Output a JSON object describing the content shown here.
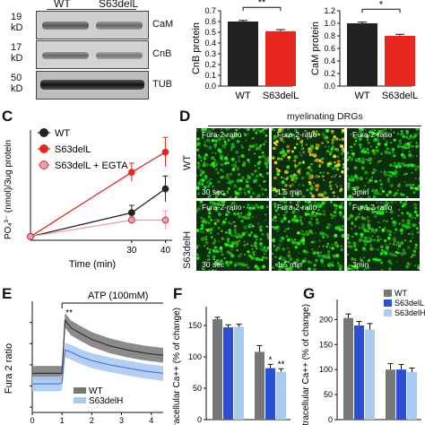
{
  "panelA": {
    "lanes": [
      "WT",
      "S63delL"
    ],
    "blots": [
      {
        "mw": "19\nkD",
        "name": "CaM"
      },
      {
        "mw": "17\nkD",
        "name": "CnB"
      },
      {
        "mw": "50\nkD",
        "name": "TUB"
      }
    ]
  },
  "panelC": {
    "letter": "C",
    "legend": [
      "WT",
      "S63delL",
      "S63delL + EGTA"
    ]
  },
  "panelD": {
    "letter": "D",
    "header": "myelinating DRGs",
    "rows": [
      "WT",
      "S63delH"
    ],
    "tile_label": "Fura-2-ratio",
    "times": [
      "30 sec",
      "1.5 min",
      "3min"
    ]
  },
  "panelE": {
    "letter": "E",
    "ann": "ATP (100mM)",
    "sig": "**"
  },
  "panelF": {
    "letter": "F"
  },
  "panelG": {
    "letter": "G"
  },
  "colors": {
    "wt": "#222222",
    "delL": "#e8261f",
    "egta": "#f2a0a8",
    "delLblue": "#2a4fd6",
    "delHlight": "#a9cbf2",
    "wtgray": "#777777"
  },
  "chart_data": [
    {
      "type": "bar",
      "id": "B1",
      "categories": [
        "WT",
        "S63delL"
      ],
      "values": [
        0.6,
        0.51
      ],
      "errors": [
        0.01,
        0.015
      ],
      "ylabel": "CnB protein",
      "ylim": [
        0,
        0.7
      ],
      "yticks": [
        "0.0",
        "0.1",
        "0.2",
        "0.3",
        "0.4",
        "0.5",
        "0.6",
        "0.7"
      ],
      "sig": "**"
    },
    {
      "type": "bar",
      "id": "B2",
      "categories": [
        "WT",
        "S63delL"
      ],
      "values": [
        1.0,
        0.8
      ],
      "errors": [
        0.02,
        0.025
      ],
      "ylabel": "CaM protein",
      "ylim": [
        0,
        1.2
      ],
      "yticks": [
        "0.0",
        "0.2",
        "0.4",
        "0.6",
        "0.8",
        "1.0",
        "1.2"
      ],
      "sig": "*"
    },
    {
      "type": "line",
      "id": "C",
      "x": [
        0,
        30,
        40
      ],
      "xticks": [
        "30",
        "40"
      ],
      "xlabel": "Time (min)",
      "ylabel": "PO₄³⁻ (nmol)/3ug protein",
      "ylim": [
        0,
        0.6
      ],
      "series": [
        {
          "name": "WT",
          "values": [
            0.02,
            0.15,
            0.28
          ],
          "errors": [
            0,
            0.04,
            0.07
          ]
        },
        {
          "name": "S63delL",
          "values": [
            0.02,
            0.37,
            0.48
          ],
          "errors": [
            0,
            0.05,
            0.08
          ]
        },
        {
          "name": "S63delL + EGTA",
          "values": [
            0.02,
            0.11,
            0.11
          ],
          "errors": [
            0,
            0.02,
            0.05
          ]
        }
      ]
    },
    {
      "type": "line",
      "id": "E",
      "xticks": [
        "0",
        "1",
        "2",
        "3",
        "4"
      ],
      "yticks": [
        "0.2",
        "0.4",
        "0.6",
        "0.8",
        "1.0"
      ],
      "ylabel": "Fura 2 ratio",
      "ylim": [
        0.15,
        1.15
      ],
      "xlim": [
        0,
        4.4
      ],
      "series": [
        {
          "name": "WT",
          "x": [
            0,
            0.9,
            1.0,
            1.1,
            1.3,
            1.6,
            2.0,
            2.6,
            3.2,
            3.8,
            4.4
          ],
          "values": [
            0.52,
            0.52,
            0.52,
            1.02,
            0.95,
            0.9,
            0.84,
            0.78,
            0.74,
            0.71,
            0.69
          ],
          "band": 0.07
        },
        {
          "name": "S63delH",
          "x": [
            0,
            0.9,
            1.0,
            1.1,
            1.3,
            1.6,
            2.0,
            2.6,
            3.2,
            3.8,
            4.4
          ],
          "values": [
            0.42,
            0.42,
            0.43,
            0.74,
            0.72,
            0.68,
            0.64,
            0.6,
            0.57,
            0.54,
            0.52
          ],
          "band": 0.07
        }
      ]
    },
    {
      "type": "bar",
      "id": "F",
      "ylabel": "Intracellular Ca++ (% of change)",
      "ylim": [
        0,
        180
      ],
      "yticks": [
        "0",
        "50",
        "100",
        "150"
      ],
      "groups": [
        {
          "values": [
            160,
            147,
            148
          ],
          "errors": [
            3,
            4,
            4
          ],
          "sig": [
            "",
            "",
            ""
          ]
        },
        {
          "values": [
            108,
            82,
            76
          ],
          "errors": [
            10,
            6,
            5
          ],
          "sig": [
            "",
            "*",
            "**"
          ]
        }
      ]
    },
    {
      "type": "bar",
      "id": "G",
      "ylabel": "Intracellular Ca++ (% of change)",
      "ylim": [
        0,
        240
      ],
      "yticks": [
        "0",
        "50",
        "100",
        "150",
        "200"
      ],
      "legend": [
        "WT",
        "S63delL",
        "S63delH"
      ],
      "groups": [
        {
          "values": [
            203,
            188,
            180
          ],
          "errors": [
            8,
            8,
            12
          ],
          "sig": [
            "",
            "",
            ""
          ]
        },
        {
          "values": [
            100,
            100,
            95
          ],
          "errors": [
            12,
            10,
            8
          ],
          "sig": [
            "",
            "",
            ""
          ]
        }
      ]
    }
  ]
}
